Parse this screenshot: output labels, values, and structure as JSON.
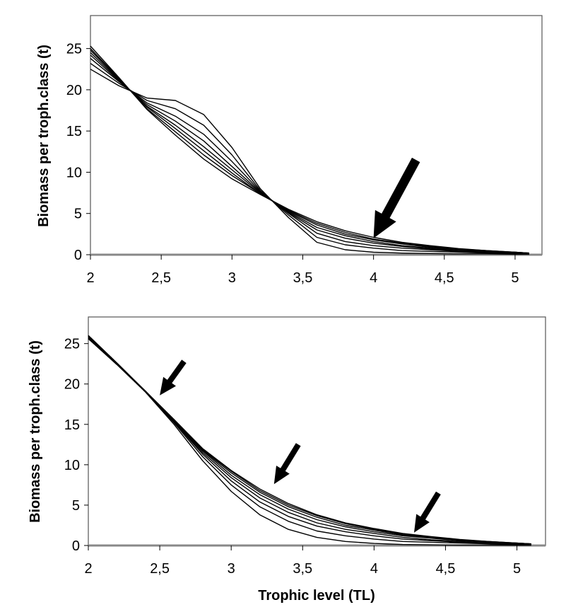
{
  "chart_data": [
    {
      "type": "line",
      "title": "",
      "xlabel": "Trophic level (TL)",
      "ylabel": "Biomass per troph.class (t)",
      "xlim": [
        2,
        5.19
      ],
      "ylim": [
        0,
        29
      ],
      "xticks": [
        2,
        2.5,
        3,
        3.5,
        4,
        4.5,
        5
      ],
      "xtick_labels": [
        "2",
        "2,5",
        "3",
        "3,5",
        "4",
        "4,5",
        "5"
      ],
      "yticks": [
        0,
        5,
        10,
        15,
        20,
        25
      ],
      "ytick_labels": [
        "0",
        "5",
        "10",
        "15",
        "20",
        "25"
      ],
      "grid": false,
      "legend": "none",
      "x": [
        2,
        2.2,
        2.4,
        2.6,
        2.8,
        3.0,
        3.2,
        3.4,
        3.6,
        3.8,
        4.0,
        4.2,
        4.4,
        4.6,
        4.8,
        5.0,
        5.1
      ],
      "series": [
        {
          "name": "s1",
          "values": [
            22.5,
            20.5,
            19.0,
            18.7,
            17.0,
            13.0,
            8.0,
            4.5,
            1.5,
            0.6,
            0.3,
            0.2,
            0.15,
            0.1,
            0.1,
            0.05,
            0.05
          ]
        },
        {
          "name": "s2",
          "values": [
            23.2,
            20.8,
            18.7,
            17.7,
            15.7,
            12.1,
            7.8,
            4.8,
            2.1,
            1.2,
            0.8,
            0.5,
            0.4,
            0.3,
            0.2,
            0.1,
            0.1
          ]
        },
        {
          "name": "s3",
          "values": [
            23.8,
            21.0,
            18.4,
            16.8,
            14.6,
            11.3,
            7.7,
            5.0,
            2.6,
            1.6,
            1.1,
            0.8,
            0.6,
            0.4,
            0.3,
            0.2,
            0.1
          ]
        },
        {
          "name": "s4",
          "values": [
            24.2,
            21.1,
            18.2,
            16.2,
            13.8,
            10.7,
            7.6,
            5.1,
            3.0,
            2.0,
            1.4,
            1.0,
            0.7,
            0.5,
            0.3,
            0.2,
            0.1
          ]
        },
        {
          "name": "s5",
          "values": [
            24.5,
            21.2,
            18.0,
            15.7,
            13.1,
            10.3,
            7.5,
            5.2,
            3.3,
            2.3,
            1.6,
            1.1,
            0.8,
            0.6,
            0.4,
            0.2,
            0.2
          ]
        },
        {
          "name": "s6",
          "values": [
            24.8,
            21.3,
            17.9,
            15.3,
            12.6,
            9.9,
            7.4,
            5.3,
            3.6,
            2.5,
            1.8,
            1.3,
            0.9,
            0.6,
            0.4,
            0.3,
            0.2
          ]
        },
        {
          "name": "s7",
          "values": [
            25.0,
            21.4,
            17.7,
            14.9,
            12.1,
            9.6,
            7.4,
            5.4,
            3.8,
            2.7,
            1.9,
            1.4,
            1.0,
            0.7,
            0.5,
            0.3,
            0.2
          ]
        },
        {
          "name": "s8",
          "values": [
            25.3,
            21.5,
            17.6,
            14.5,
            11.6,
            9.2,
            7.3,
            5.5,
            4.0,
            2.9,
            2.1,
            1.5,
            1.1,
            0.75,
            0.5,
            0.3,
            0.2
          ]
        }
      ],
      "annotations": [
        {
          "type": "arrow",
          "from": [
            4.3,
            11.5
          ],
          "to": [
            4.0,
            2.0
          ]
        }
      ]
    },
    {
      "type": "line",
      "title": "",
      "xlabel": "Trophic level (TL)",
      "ylabel": "Biomass per troph.class (t)",
      "xlim": [
        2,
        5.2
      ],
      "ylim": [
        0,
        28.3
      ],
      "xticks": [
        2,
        2.5,
        3,
        3.5,
        4,
        4.5,
        5
      ],
      "xtick_labels": [
        "2",
        "2,5",
        "3",
        "3,5",
        "4",
        "4,5",
        "5"
      ],
      "yticks": [
        0,
        5,
        10,
        15,
        20,
        25
      ],
      "ytick_labels": [
        "0",
        "5",
        "10",
        "15",
        "20",
        "25"
      ],
      "grid": false,
      "legend": "none",
      "x": [
        2,
        2.2,
        2.4,
        2.6,
        2.8,
        3.0,
        3.2,
        3.4,
        3.6,
        3.8,
        4.0,
        4.2,
        4.4,
        4.6,
        4.8,
        5.0,
        5.1
      ],
      "series": [
        {
          "name": "s1",
          "values": [
            25.6,
            22.4,
            19.0,
            15.0,
            10.5,
            6.7,
            3.8,
            2.0,
            1.0,
            0.5,
            0.25,
            0.12,
            0.08,
            0.05,
            0.05,
            0.03,
            0.03
          ]
        },
        {
          "name": "s2",
          "values": [
            25.7,
            22.5,
            19.0,
            15.2,
            11.0,
            7.5,
            4.8,
            3.0,
            1.8,
            1.2,
            0.8,
            0.5,
            0.4,
            0.3,
            0.2,
            0.1,
            0.1
          ]
        },
        {
          "name": "s3",
          "values": [
            25.8,
            22.5,
            19.1,
            15.3,
            11.3,
            8.0,
            5.4,
            3.6,
            2.4,
            1.7,
            1.2,
            0.8,
            0.6,
            0.4,
            0.3,
            0.2,
            0.1
          ]
        },
        {
          "name": "s4",
          "values": [
            25.9,
            22.5,
            19.1,
            15.4,
            11.5,
            8.4,
            5.9,
            4.1,
            2.8,
            2.0,
            1.5,
            1.0,
            0.7,
            0.5,
            0.3,
            0.2,
            0.1
          ]
        },
        {
          "name": "s5",
          "values": [
            25.9,
            22.6,
            19.1,
            15.5,
            11.7,
            8.7,
            6.3,
            4.5,
            3.2,
            2.3,
            1.7,
            1.2,
            0.9,
            0.6,
            0.4,
            0.2,
            0.2
          ]
        },
        {
          "name": "s6",
          "values": [
            26.0,
            22.6,
            19.1,
            15.5,
            11.8,
            9.0,
            6.6,
            4.8,
            3.5,
            2.5,
            1.9,
            1.3,
            1.0,
            0.7,
            0.4,
            0.3,
            0.2
          ]
        },
        {
          "name": "s7",
          "values": [
            26.0,
            22.6,
            19.1,
            15.6,
            11.9,
            9.2,
            6.8,
            5.0,
            3.7,
            2.7,
            2.0,
            1.4,
            1.0,
            0.7,
            0.5,
            0.3,
            0.2
          ]
        },
        {
          "name": "s8",
          "values": [
            26.0,
            22.6,
            19.1,
            15.6,
            12.0,
            9.3,
            7.0,
            5.2,
            3.8,
            2.8,
            2.1,
            1.5,
            1.1,
            0.75,
            0.5,
            0.3,
            0.2
          ]
        }
      ],
      "annotations": [
        {
          "type": "arrow",
          "from": [
            2.67,
            22.8
          ],
          "to": [
            2.5,
            18.6
          ]
        },
        {
          "type": "arrow",
          "from": [
            3.47,
            12.5
          ],
          "to": [
            3.3,
            7.6
          ]
        },
        {
          "type": "arrow",
          "from": [
            4.45,
            6.5
          ],
          "to": [
            4.28,
            1.6
          ]
        }
      ]
    }
  ]
}
